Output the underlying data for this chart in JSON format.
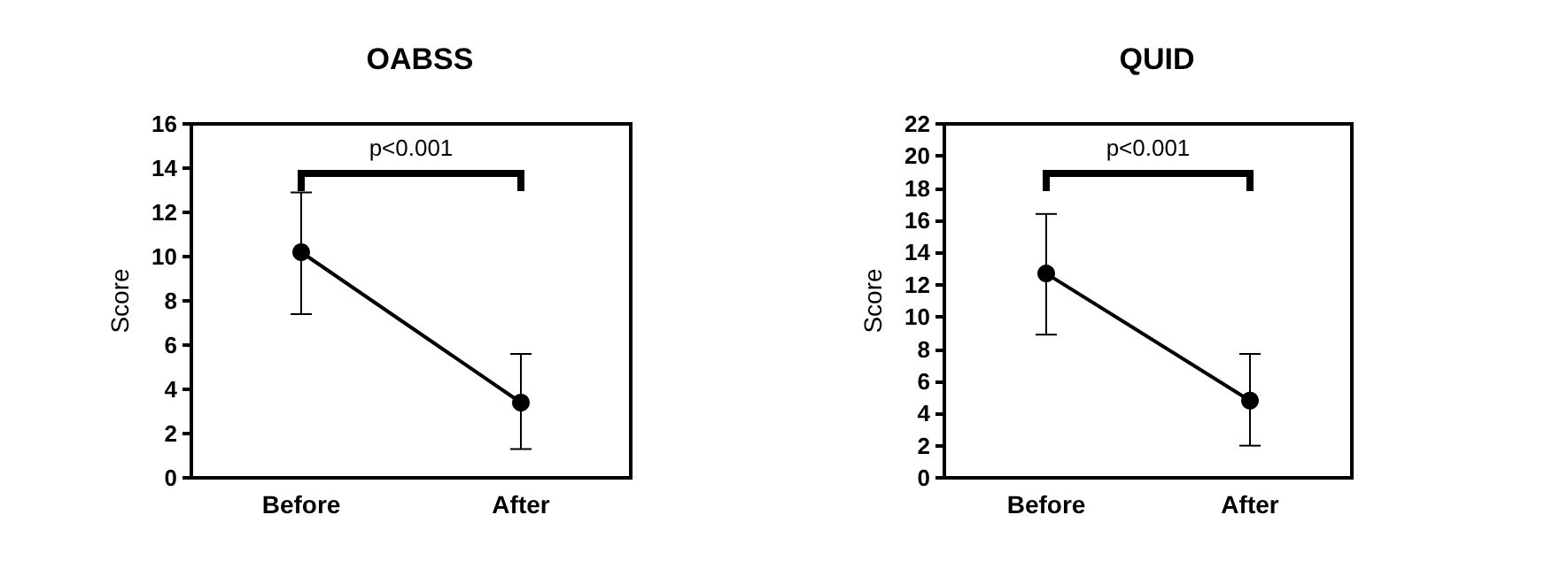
{
  "chart_data": [
    {
      "type": "line",
      "title": "OABSS",
      "ylabel": "Score",
      "categories": [
        "Before",
        "After"
      ],
      "series": [
        {
          "color": "#000000",
          "values": [
            10.2,
            3.4
          ],
          "errors": [
            [
              7.4,
              12.9
            ],
            [
              1.3,
              5.6
            ]
          ]
        }
      ],
      "ylim": [
        0,
        16
      ],
      "yticks": [
        0,
        2,
        4,
        6,
        8,
        10,
        12,
        14,
        16
      ],
      "grid": false,
      "marker": "circle",
      "line_style": "solid",
      "annotations": [
        "p<0.001"
      ]
    },
    {
      "type": "line",
      "title": "QUID",
      "ylabel": "Score",
      "categories": [
        "Before",
        "After"
      ],
      "series": [
        {
          "color": "#000000",
          "values": [
            12.7,
            4.8
          ],
          "errors": [
            [
              8.9,
              16.4
            ],
            [
              2.0,
              7.7
            ]
          ]
        }
      ],
      "ylim": [
        0,
        22
      ],
      "yticks": [
        0,
        2,
        4,
        6,
        8,
        10,
        12,
        14,
        16,
        18,
        20,
        22
      ],
      "grid": false,
      "marker": "circle",
      "line_style": "solid",
      "annotations": [
        "p<0.001"
      ]
    }
  ]
}
